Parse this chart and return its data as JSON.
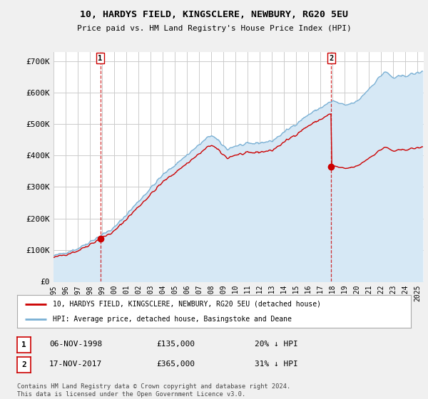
{
  "title": "10, HARDYS FIELD, KINGSCLERE, NEWBURY, RG20 5EU",
  "subtitle": "Price paid vs. HM Land Registry's House Price Index (HPI)",
  "ylabel_ticks": [
    "£0",
    "£100K",
    "£200K",
    "£300K",
    "£400K",
    "£500K",
    "£600K",
    "£700K"
  ],
  "ytick_values": [
    0,
    100000,
    200000,
    300000,
    400000,
    500000,
    600000,
    700000
  ],
  "ylim": [
    0,
    730000
  ],
  "xlim_start": 1995.0,
  "xlim_end": 2025.5,
  "hpi_color": "#7ab0d4",
  "hpi_fill_color": "#d6e8f5",
  "price_color": "#cc0000",
  "marker_color": "#cc0000",
  "vline_color": "#cc0000",
  "marker1_x": 1998.85,
  "marker1_y": 135000,
  "marker2_x": 2017.88,
  "marker2_y": 365000,
  "legend_label1": "10, HARDYS FIELD, KINGSCLERE, NEWBURY, RG20 5EU (detached house)",
  "legend_label2": "HPI: Average price, detached house, Basingstoke and Deane",
  "note1_date": "06-NOV-1998",
  "note1_price": "£135,000",
  "note1_pct": "20% ↓ HPI",
  "note2_date": "17-NOV-2017",
  "note2_price": "£365,000",
  "note2_pct": "31% ↓ HPI",
  "footer": "Contains HM Land Registry data © Crown copyright and database right 2024.\nThis data is licensed under the Open Government Licence v3.0.",
  "background_color": "#f0f0f0",
  "plot_background": "#ffffff",
  "grid_color": "#cccccc"
}
